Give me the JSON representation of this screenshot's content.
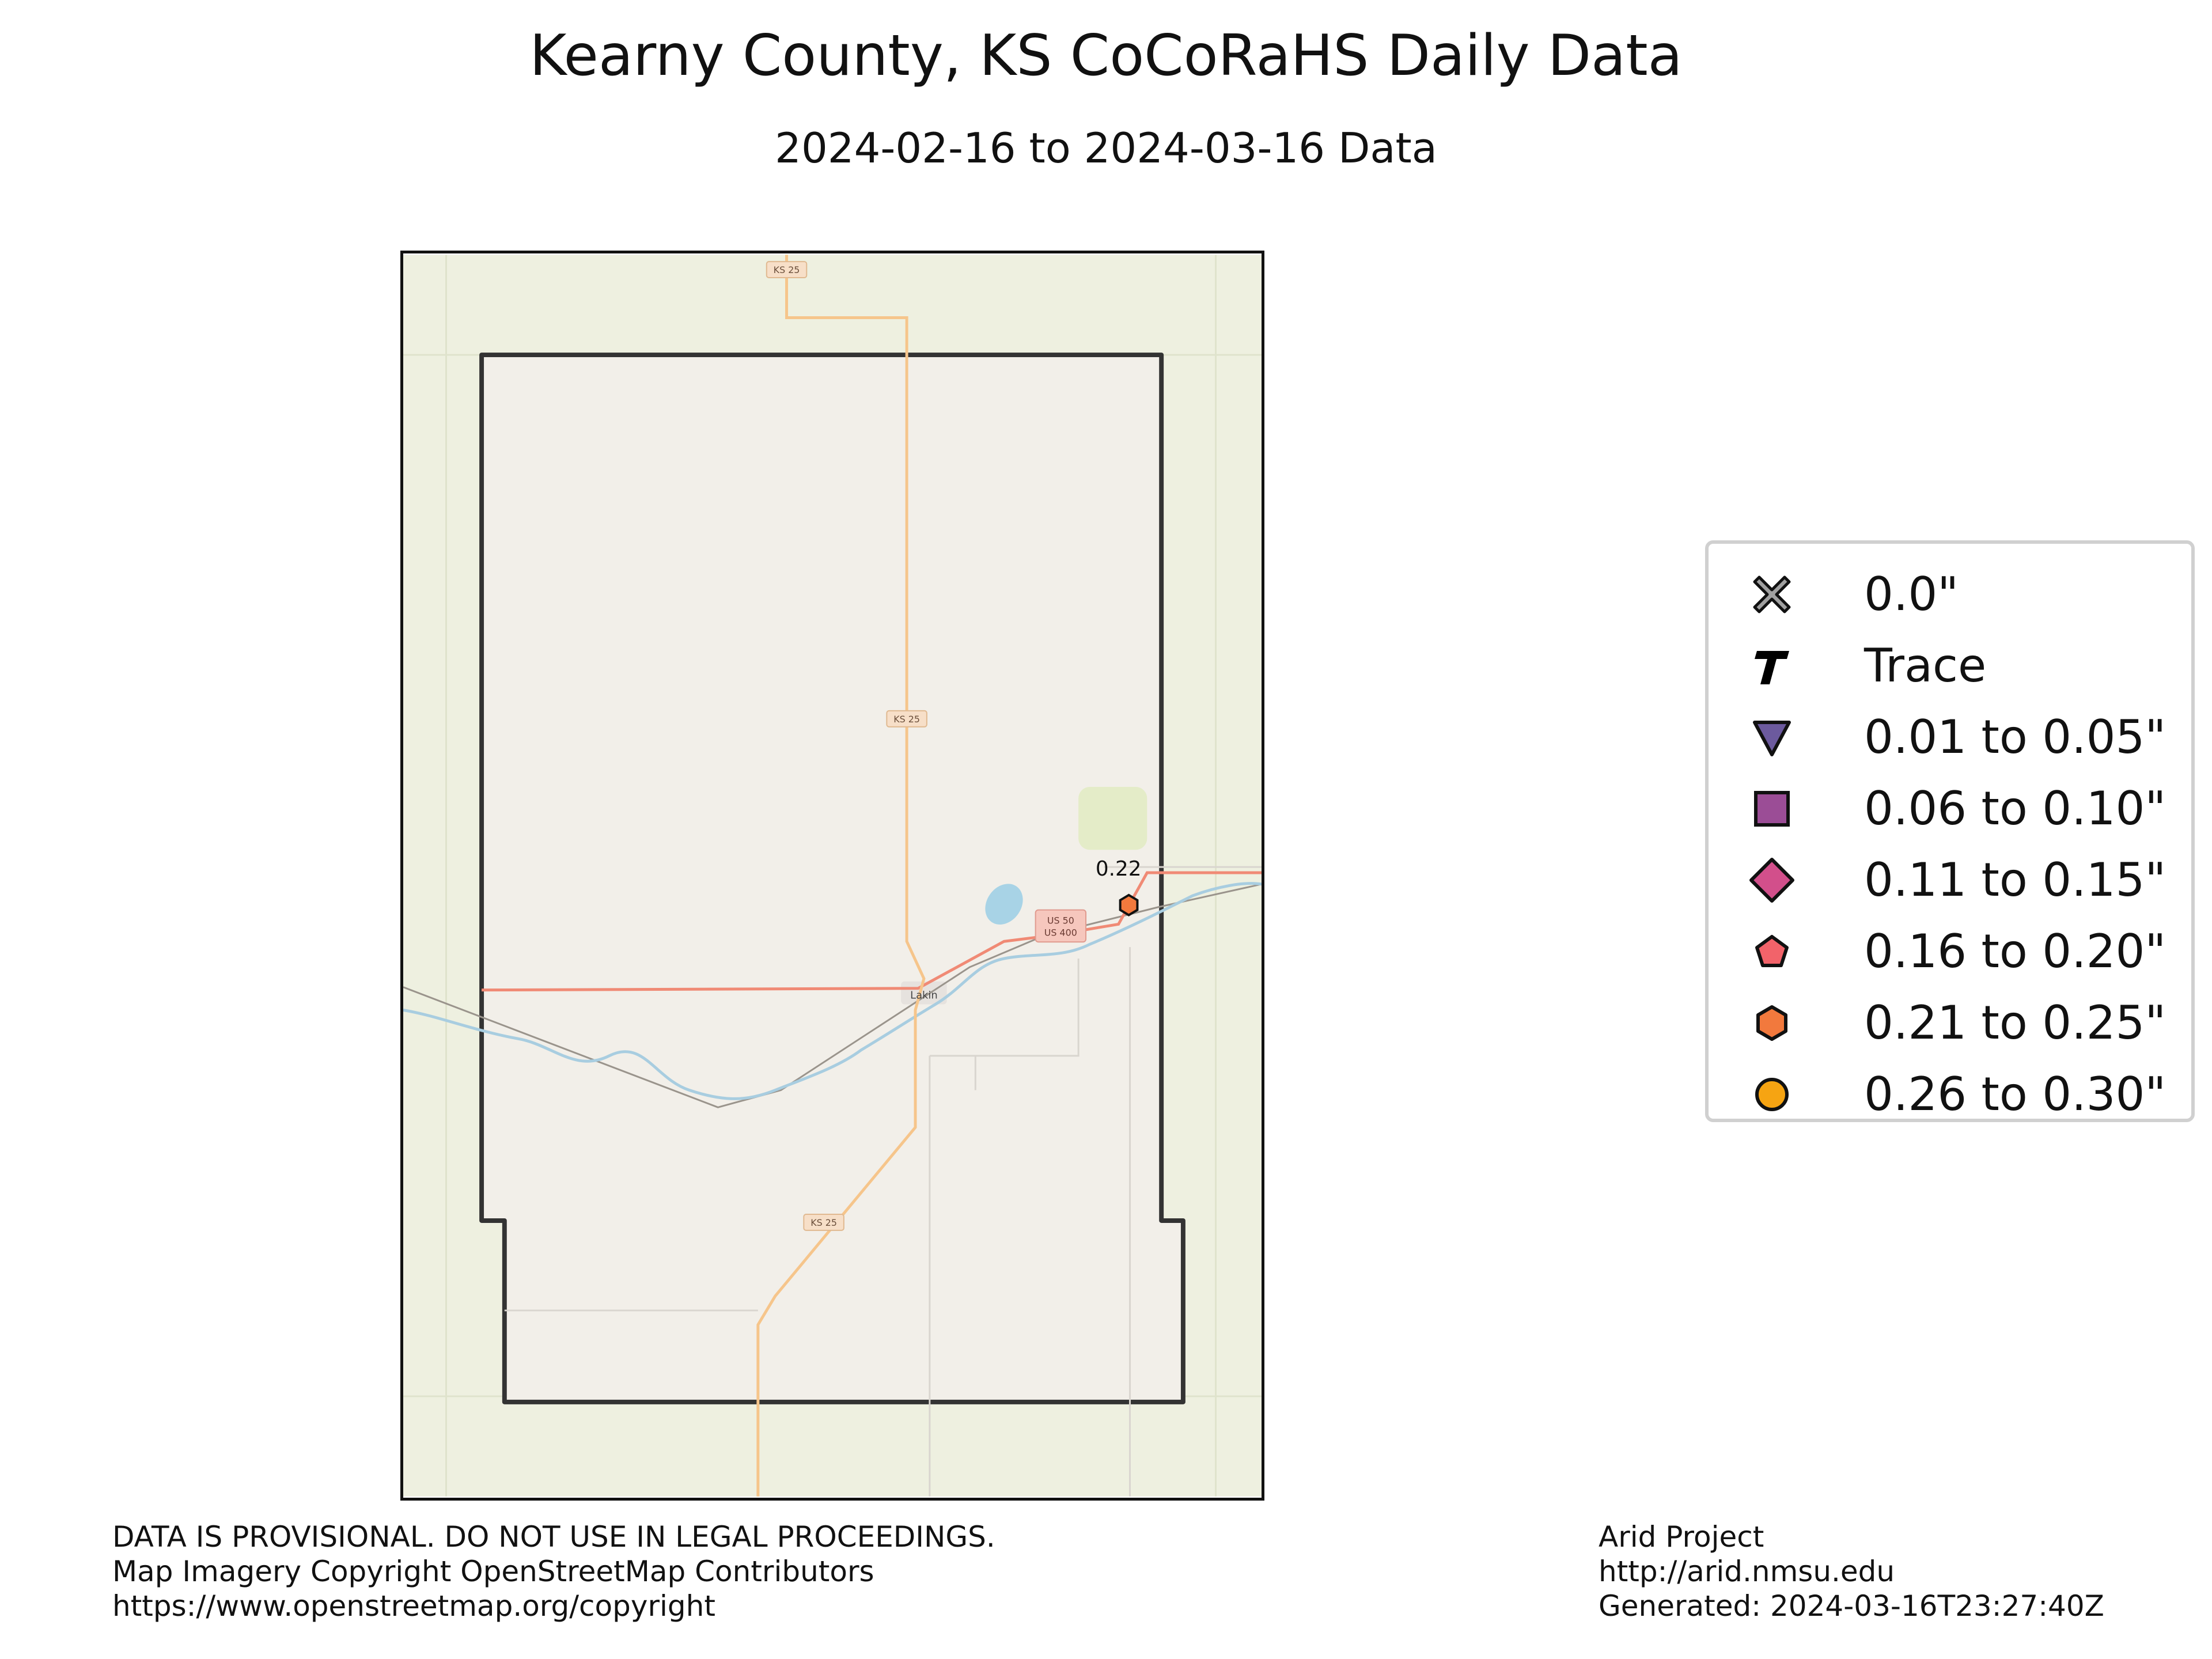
{
  "title": "Kearny County, KS CoCoRaHS Daily Data",
  "subtitle": "2024-02-16 to 2024-03-16 Data",
  "map": {
    "road_labels": [
      "KS 25",
      "KS 25",
      "KS 25",
      "US 50",
      "US 400"
    ],
    "town_label": "Lakin",
    "stations": [
      {
        "value_label": "0.22",
        "symbol": "hexagon-icon",
        "color": "#f2793d"
      }
    ],
    "colors": {
      "background": "#eef0e0",
      "county_fill": "#f2efe9",
      "road": "#f6c58b",
      "highway": "#f08a75",
      "river": "#a8cde0",
      "lake": "#a8d3e6",
      "boundary": "#333333"
    }
  },
  "legend": {
    "items": [
      {
        "label": "0.0\"",
        "symbol": "cross-icon",
        "color": "#a0a0a0"
      },
      {
        "label": "Trace",
        "symbol": "trace-t-icon",
        "color": "#000000"
      },
      {
        "label": "0.01 to 0.05\"",
        "symbol": "triangle-down-icon",
        "color": "#6c5a9e"
      },
      {
        "label": "0.06 to 0.10\"",
        "symbol": "square-icon",
        "color": "#9b4d96"
      },
      {
        "label": "0.11 to 0.15\"",
        "symbol": "diamond-icon",
        "color": "#d24f8b"
      },
      {
        "label": "0.16 to 0.20\"",
        "symbol": "pentagon-icon",
        "color": "#f2636a"
      },
      {
        "label": "0.21 to 0.25\"",
        "symbol": "hexagon-icon",
        "color": "#f2793d"
      },
      {
        "label": "0.26 to 0.30\"",
        "symbol": "circle-icon",
        "color": "#f6a412"
      }
    ]
  },
  "footer": {
    "disclaimer": "DATA IS PROVISIONAL. DO NOT USE IN LEGAL PROCEEDINGS.",
    "imagery": "Map Imagery Copyright OpenStreetMap Contributors",
    "copyright_url": "https://www.openstreetmap.org/copyright",
    "project": "Arid Project",
    "project_url": "http://arid.nmsu.edu",
    "generated": "Generated: 2024-03-16T23:27:40Z"
  }
}
